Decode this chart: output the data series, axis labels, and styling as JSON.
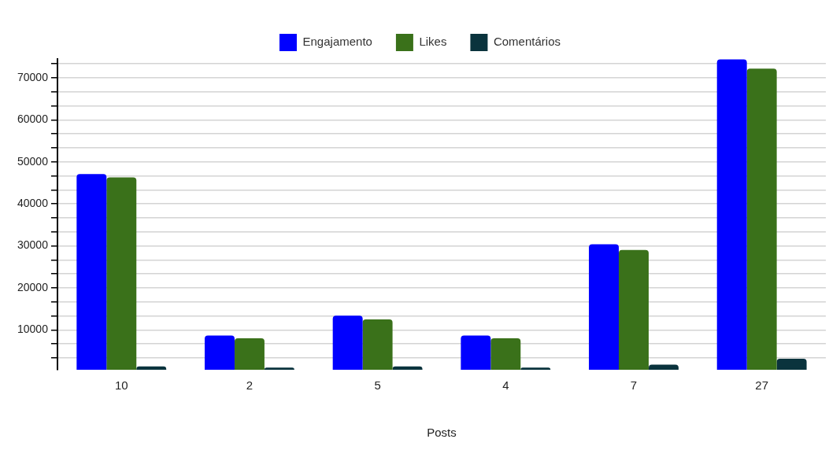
{
  "chart_data": {
    "type": "bar",
    "xlabel": "Posts",
    "categories": [
      "10",
      "2",
      "5",
      "4",
      "7",
      "27"
    ],
    "series": [
      {
        "name": "Engajamento",
        "color": "#0000ff",
        "values": [
          47100,
          8650,
          13400,
          8650,
          30400,
          74400
        ]
      },
      {
        "name": "Likes",
        "color": "#3a711a",
        "values": [
          46300,
          8000,
          12500,
          8000,
          29000,
          72200
        ]
      },
      {
        "name": "Comentários",
        "color": "#0a333d",
        "values": [
          1300,
          1000,
          1300,
          1000,
          1700,
          3100
        ]
      }
    ],
    "ylim": [
      500,
      74500
    ],
    "yticks": [
      {
        "value": 3333,
        "label": null
      },
      {
        "value": 6667,
        "label": null
      },
      10000,
      {
        "value": 13333,
        "label": null
      },
      {
        "value": 16667,
        "label": null
      },
      20000,
      {
        "value": 23333,
        "label": null
      },
      {
        "value": 26667,
        "label": null
      },
      30000,
      {
        "value": 33333,
        "label": null
      },
      {
        "value": 36667,
        "label": null
      },
      40000,
      {
        "value": 43333,
        "label": null
      },
      {
        "value": 46667,
        "label": null
      },
      50000,
      {
        "value": 53333,
        "label": null
      },
      {
        "value": 56667,
        "label": null
      },
      60000,
      {
        "value": 63333,
        "label": null
      },
      {
        "value": 66667,
        "label": null
      },
      70000,
      {
        "value": 73333,
        "label": null
      }
    ],
    "grid": "y",
    "legend": "top"
  }
}
